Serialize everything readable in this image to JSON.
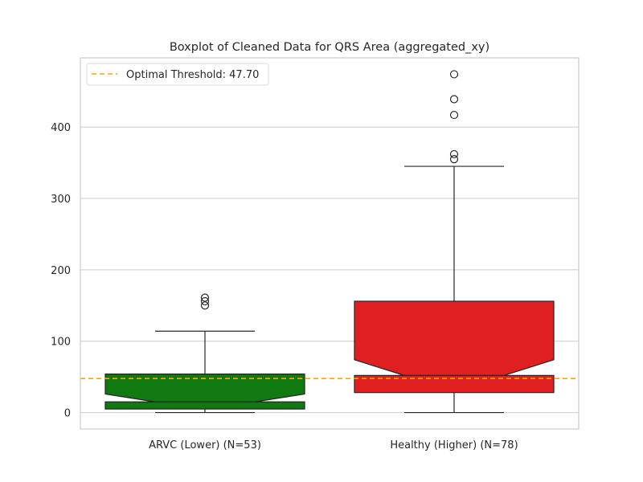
{
  "chart_data": {
    "type": "boxplot",
    "title": "Boxplot of Cleaned Data for QRS Area (aggregated_xy)",
    "xlabel": "",
    "ylabel": "",
    "ylim": [
      -23,
      497
    ],
    "yticks": [
      0,
      100,
      200,
      300,
      400
    ],
    "grid": true,
    "notched": true,
    "legend_position": "top-left",
    "categories": [
      "ARVC (Lower) (N=53)",
      "Healthy (Higher) (N=78)"
    ],
    "series": [
      {
        "category": "ARVC (Lower) (N=53)",
        "color": "#107a10",
        "whisker_low": 0,
        "q1": 5,
        "notch_low": 15,
        "median": 15,
        "notch_high": 26,
        "q3": 54,
        "whisker_high": 114,
        "outliers": [
          150,
          156,
          161
        ]
      },
      {
        "category": "Healthy (Higher) (N=78)",
        "color": "#e02020",
        "whisker_low": 0,
        "q1": 28,
        "notch_low": 52,
        "median": 52,
        "notch_high": 74,
        "q3": 156,
        "whisker_high": 345,
        "outliers": [
          355,
          362,
          417,
          439,
          474
        ]
      }
    ],
    "threshold": {
      "value": 47.7,
      "label": "Optimal Threshold: 47.70",
      "color": "#ffa500"
    }
  }
}
